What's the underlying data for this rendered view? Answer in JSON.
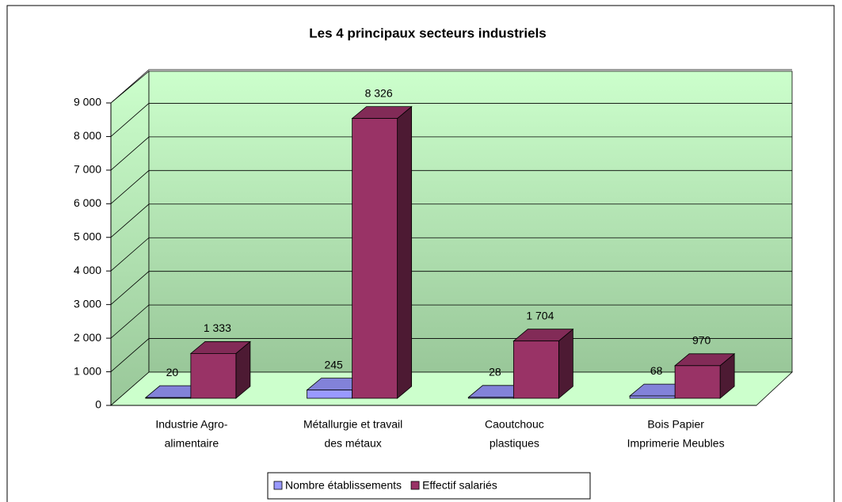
{
  "chart_data": {
    "type": "bar3d",
    "title": "Les 4 principaux secteurs industriels",
    "categories": [
      [
        "Industrie Agro-",
        "alimentaire"
      ],
      [
        "Métallurgie et travail",
        "des métaux"
      ],
      [
        "Caoutchouc",
        "plastiques"
      ],
      [
        "Bois Papier",
        "Imprimerie Meubles"
      ]
    ],
    "series": [
      {
        "name": "Nombre établissements",
        "color": "#9999ff",
        "values": [
          20,
          245,
          28,
          68
        ],
        "value_labels": [
          "20",
          "245",
          "28",
          "68"
        ]
      },
      {
        "name": "Effectif salariés",
        "color": "#993366",
        "values": [
          1333,
          8326,
          1704,
          970
        ],
        "value_labels": [
          "1 333",
          "8 326",
          "1 704",
          "970"
        ]
      }
    ],
    "ylim": [
      0,
      9000
    ],
    "yticks": [
      0,
      {
        "value": 1000,
        "label": "1 000"
      },
      {
        "value": 2000,
        "label": "2 000"
      },
      {
        "value": 3000,
        "label": "3 000"
      },
      {
        "value": 4000,
        "label": "4 000"
      },
      {
        "value": 5000,
        "label": "5 000"
      },
      {
        "value": 6000,
        "label": "6 000"
      },
      {
        "value": 7000,
        "label": "7 000"
      },
      {
        "value": 8000,
        "label": "8 000"
      },
      {
        "value": 9000,
        "label": "9 000"
      }
    ],
    "grid": true,
    "legend": "bottom"
  }
}
